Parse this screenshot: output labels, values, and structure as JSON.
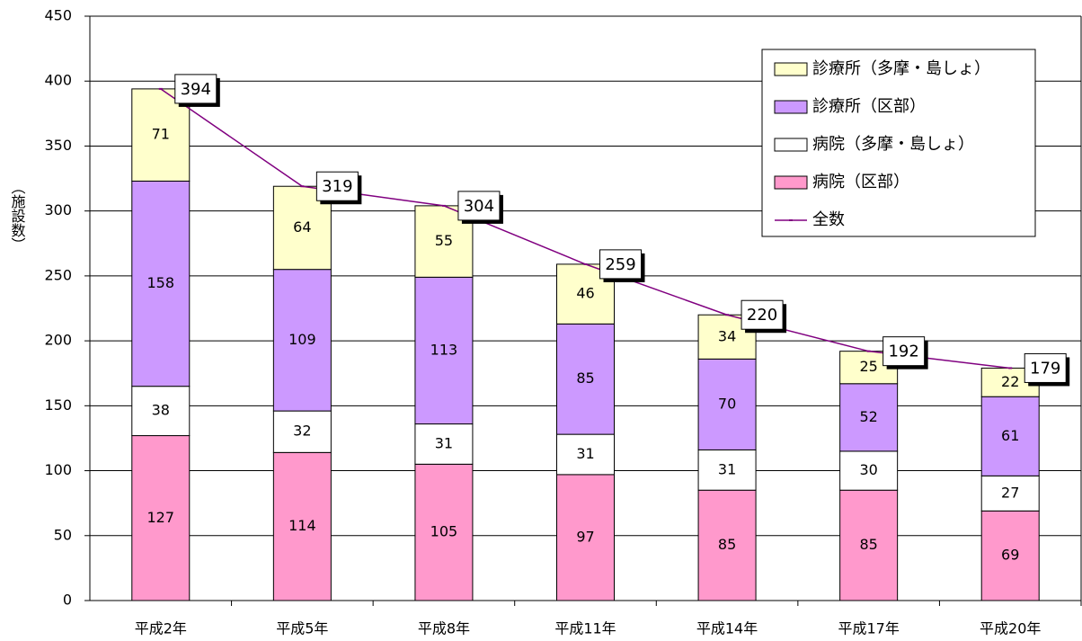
{
  "chart_data": {
    "type": "stacked_bar_line",
    "ylabel": "（施設数）",
    "categories": [
      "平成2年",
      "平成5年",
      "平成8年",
      "平成11年",
      "平成14年",
      "平成17年",
      "平成20年"
    ],
    "series": [
      {
        "name": "病院（区部）",
        "color": "#ff99cc",
        "values": [
          127,
          114,
          105,
          97,
          85,
          85,
          69
        ]
      },
      {
        "name": "病院（多摩・島しょ）",
        "color": "#ffffff",
        "values": [
          38,
          32,
          31,
          31,
          31,
          30,
          27
        ]
      },
      {
        "name": "診療所（区部）",
        "color": "#cc99ff",
        "values": [
          158,
          109,
          113,
          85,
          70,
          52,
          61
        ]
      },
      {
        "name": "診療所（多摩・島しょ）",
        "color": "#ffffcc",
        "values": [
          71,
          64,
          55,
          46,
          34,
          25,
          22
        ]
      }
    ],
    "line_series": {
      "name": "全数",
      "color": "#800080",
      "values": [
        394,
        319,
        304,
        259,
        220,
        192,
        179
      ]
    },
    "ylim": [
      0,
      450
    ],
    "yticks": [
      0,
      50,
      100,
      150,
      200,
      250,
      300,
      350,
      400,
      450
    ],
    "grid": true,
    "legend": "upper right"
  }
}
